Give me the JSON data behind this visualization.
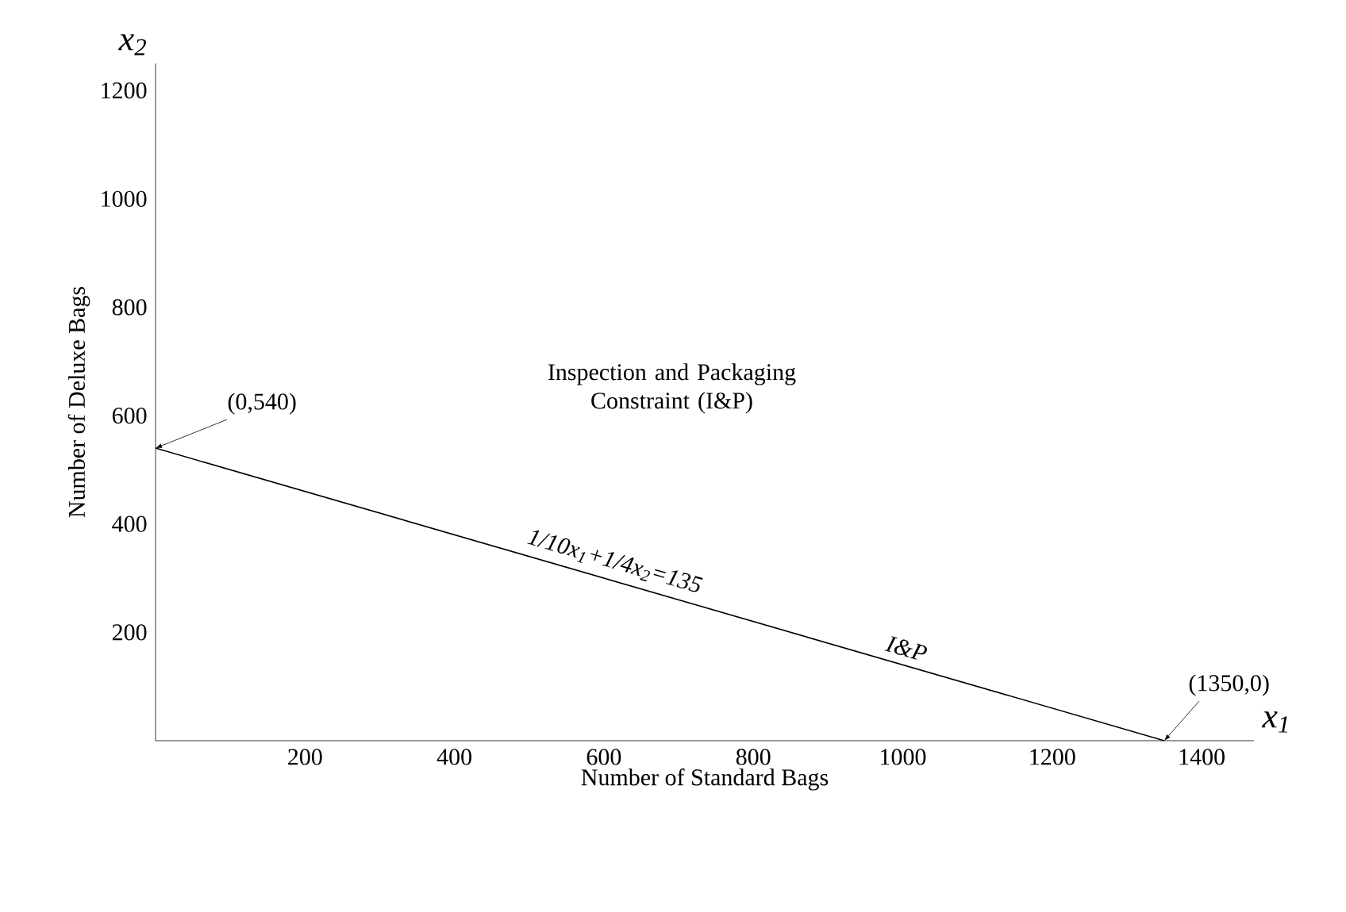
{
  "chart_data": {
    "type": "line",
    "xlabel": "Number of Standard Bags",
    "ylabel": "Number of Deluxe Bags",
    "x": [
      0,
      1350
    ],
    "series": [
      {
        "color": "#000000",
        "values": [
          540,
          0
        ]
      }
    ],
    "xlim": [
      0,
      1470
    ],
    "ylim": [
      0,
      1250
    ],
    "xticks": [
      200,
      400,
      600,
      800,
      1000,
      1200,
      1400
    ],
    "yticks": [
      200,
      400,
      600,
      800,
      1000,
      1200
    ],
    "grid": false,
    "marker": "none",
    "line_style": "solid",
    "annotations": [
      {
        "text": "(0,540)",
        "x": 0,
        "y": 540
      },
      {
        "text": "(1350,0)",
        "x": 1350,
        "y": 0
      },
      "Inspection and Packaging Constraint (I&P)",
      "1/10x$_{1}$+1/4x$_{2}$=135",
      "I&P",
      "x$_{1}$",
      "x$_{2}$"
    ]
  }
}
